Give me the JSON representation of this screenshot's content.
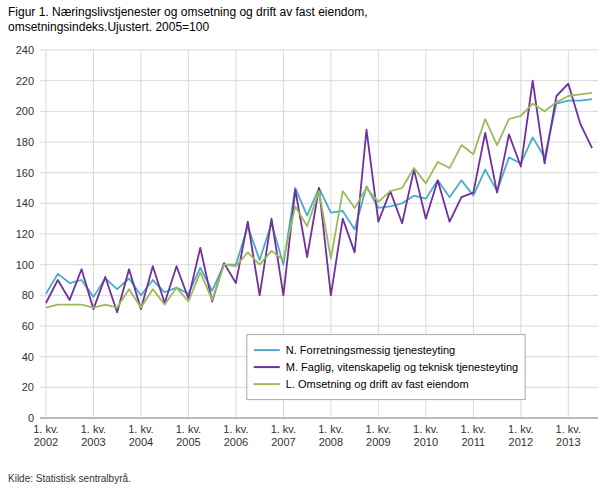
{
  "chart_data": {
    "type": "line",
    "title": "Figur 1. Næringslivstjenester og omsetning og drift av fast eiendom,\nomsetningsindeks.Ujustert. 2005=100",
    "annotations": [
      "Kilde: Statistisk sentralbyrå."
    ],
    "categories": [
      "1. kv.\n2002",
      null,
      null,
      null,
      "1. kv.\n2003",
      null,
      null,
      null,
      "1. kv.\n2004",
      null,
      null,
      null,
      "1. kv.\n2005",
      null,
      null,
      null,
      "1. kv.\n2006",
      null,
      null,
      null,
      "1. kv.\n2007",
      null,
      null,
      null,
      "1. kv.\n2008",
      null,
      null,
      null,
      "1. kv.\n2009",
      null,
      null,
      null,
      "1. kv.\n2010",
      null,
      null,
      null,
      "1. kv.\n2011",
      null,
      null,
      null,
      "1. kv.\n2012",
      null,
      null,
      null,
      "1. kv.\n2013",
      null,
      null
    ],
    "series": [
      {
        "name": "N. Forretningsmessig tjenesteyting",
        "color": "#4BACC6",
        "values": [
          81,
          94,
          88,
          90,
          79,
          91,
          84,
          91,
          80,
          90,
          82,
          85,
          81,
          98,
          83,
          100,
          100,
          125,
          103,
          127,
          100,
          150,
          132,
          150,
          134,
          135,
          123,
          151,
          137,
          138,
          140,
          145,
          143,
          155,
          144,
          155,
          145,
          162,
          148,
          170,
          166,
          183,
          170,
          205,
          207,
          207,
          208
        ]
      },
      {
        "name": "M. Faglig, vitenskapelig og teknisk tjenesteyting",
        "color": "#7030A0",
        "values": [
          75,
          90,
          77,
          97,
          71,
          92,
          69,
          97,
          71,
          99,
          75,
          99,
          78,
          111,
          76,
          101,
          88,
          128,
          80,
          130,
          80,
          149,
          105,
          150,
          80,
          130,
          108,
          188,
          128,
          148,
          127,
          162,
          130,
          155,
          128,
          144,
          147,
          186,
          147,
          185,
          164,
          220,
          166,
          210,
          218,
          192,
          176
        ]
      },
      {
        "name": "L. Omsetning og drift av fast eiendom",
        "color": "#9BBB59",
        "values": [
          72,
          74,
          74,
          74,
          72,
          74,
          72,
          84,
          72,
          84,
          74,
          85,
          76,
          95,
          77,
          100,
          99,
          108,
          100,
          109,
          103,
          138,
          125,
          148,
          104,
          148,
          137,
          150,
          141,
          148,
          150,
          163,
          153,
          167,
          163,
          178,
          172,
          195,
          178,
          195,
          197,
          205,
          200,
          206,
          210,
          211,
          212
        ]
      }
    ],
    "ylim": [
      0,
      240
    ],
    "yticks": [
      0,
      20,
      40,
      60,
      80,
      100,
      120,
      140,
      160,
      180,
      200,
      220,
      240
    ],
    "grid": true,
    "legend": "lower-center"
  }
}
